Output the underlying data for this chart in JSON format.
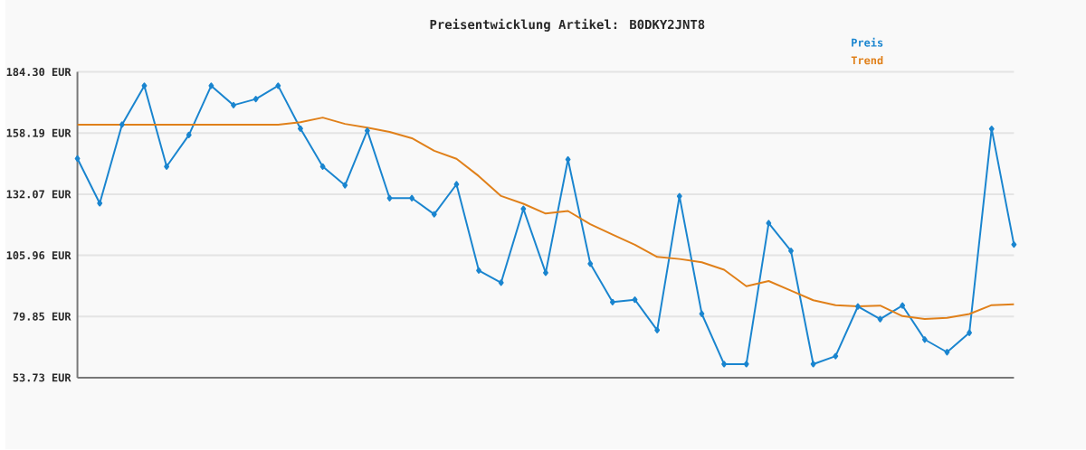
{
  "chart_data": {
    "type": "line",
    "title": "Preisentwicklung Artikel: B0DKY2JNT8",
    "categories": [
      null,
      null,
      null,
      null,
      null,
      null,
      null,
      null,
      null,
      null,
      null,
      null,
      null,
      null,
      null,
      null,
      null,
      null,
      null,
      null,
      null,
      null,
      null,
      null,
      null,
      null,
      null,
      null,
      null,
      null,
      null,
      null,
      null,
      null,
      null,
      null,
      null,
      null,
      null,
      null,
      null,
      null,
      null
    ],
    "series": [
      {
        "name": "Preis",
        "color": "#1a85cf",
        "marker": "diamond",
        "values": [
          147.3,
          128.2,
          161.8,
          178.4,
          143.9,
          157.4,
          178.4,
          170.1,
          172.7,
          178.4,
          160.1,
          143.9,
          135.9,
          159.2,
          130.4,
          130.4,
          123.5,
          136.3,
          99.5,
          94.3,
          125.8,
          98.5,
          146.9,
          102.4,
          86.0,
          87.0,
          74.0,
          131.2,
          81.0,
          59.5,
          59.5,
          119.7,
          107.9,
          59.5,
          62.9,
          84.1,
          78.7,
          84.5,
          70.0,
          64.6,
          72.9,
          160.0,
          110.6
        ]
      },
      {
        "name": "Trend",
        "color": "#e0801a",
        "marker": "none",
        "values": [
          161.8,
          161.8,
          161.8,
          161.8,
          161.8,
          161.8,
          161.8,
          161.8,
          161.8,
          161.8,
          162.8,
          164.8,
          162.1,
          160.5,
          158.7,
          156.0,
          150.6,
          147.2,
          139.8,
          131.3,
          128.0,
          123.8,
          124.9,
          119.3,
          114.8,
          110.5,
          105.3,
          104.4,
          103.0,
          99.8,
          92.8,
          95.0,
          90.9,
          86.8,
          84.7,
          84.2,
          84.5,
          80.0,
          78.8,
          79.3,
          80.9,
          84.7,
          85.1
        ]
      }
    ],
    "ylim": [
      53.73,
      184.3
    ],
    "yticks": [
      {
        "value": 53.73,
        "label": "53.73 EUR"
      },
      {
        "value": 79.85,
        "label": "79.85 EUR"
      },
      {
        "value": 105.96,
        "label": "105.96 EUR"
      },
      {
        "value": 132.07,
        "label": "132.07 EUR"
      },
      {
        "value": 158.19,
        "label": "158.19 EUR"
      },
      {
        "value": 184.3,
        "label": "184.30 EUR"
      }
    ],
    "grid": "y",
    "legend": "top right"
  }
}
